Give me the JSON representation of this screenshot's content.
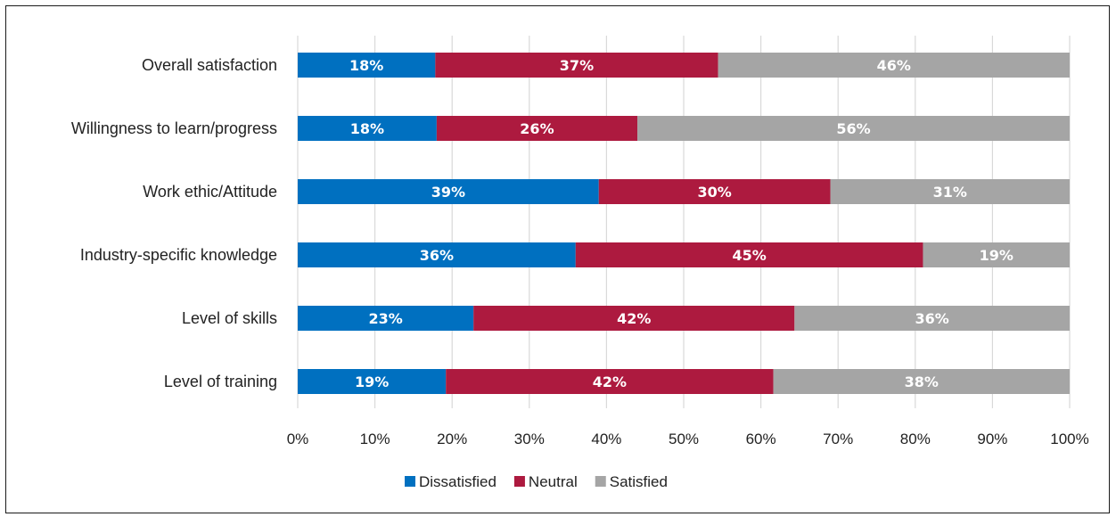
{
  "chart_data": {
    "type": "bar",
    "orientation": "horizontal",
    "stacked": true,
    "title": "",
    "xlabel": "",
    "ylabel": "",
    "xlim": [
      0,
      100
    ],
    "x_ticks": [
      "0%",
      "10%",
      "20%",
      "30%",
      "40%",
      "50%",
      "60%",
      "70%",
      "80%",
      "90%",
      "100%"
    ],
    "grid": true,
    "legend_position": "bottom",
    "categories": [
      "Overall satisfaction",
      "Willingness to learn/progress",
      "Work ethic/Attitude",
      "Industry-specific knowledge",
      "Level of skills",
      "Level of training"
    ],
    "series": [
      {
        "name": "Dissatisfied",
        "color": "#0070c0",
        "values": [
          18,
          18,
          39,
          36,
          23,
          19
        ]
      },
      {
        "name": "Neutral",
        "color": "#ad1a3f",
        "values": [
          37,
          26,
          30,
          45,
          42,
          42
        ]
      },
      {
        "name": "Satisfied",
        "color": "#a5a5a5",
        "values": [
          46,
          56,
          31,
          19,
          36,
          38
        ]
      }
    ],
    "data_labels": [
      [
        "18%",
        "37%",
        "46%"
      ],
      [
        "18%",
        "26%",
        "56%"
      ],
      [
        "39%",
        "30%",
        "31%"
      ],
      [
        "36%",
        "45%",
        "19%"
      ],
      [
        "23%",
        "42%",
        "36%"
      ],
      [
        "19%",
        "42%",
        "38%"
      ]
    ]
  }
}
